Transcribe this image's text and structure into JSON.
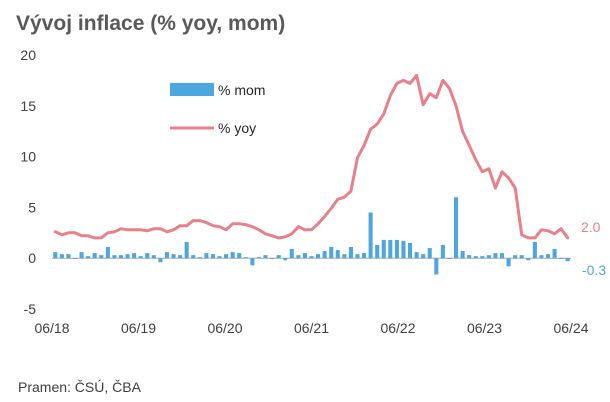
{
  "chart_data": {
    "type": "bar+line",
    "title": "Vývoj inflace (% yoy, mom)",
    "source": "Pramen: ČSÚ, ČBA",
    "ylim": [
      -5,
      20
    ],
    "y_ticks": [
      "20",
      "15",
      "10",
      "5",
      "0",
      "-5"
    ],
    "x_ticks": [
      "06/18",
      "06/19",
      "06/20",
      "06/21",
      "06/22",
      "06/23",
      "06/24"
    ],
    "grid": false,
    "legend_position": "top-left",
    "series": [
      {
        "name": "% mom",
        "kind": "bar",
        "color": "#4ea6e0",
        "values": [
          0.6,
          0.4,
          0.4,
          0.0,
          0.6,
          0.2,
          0.5,
          0.3,
          1.1,
          0.3,
          0.3,
          0.4,
          0.5,
          0.2,
          0.5,
          0.3,
          -0.4,
          0.6,
          0.4,
          0.3,
          1.6,
          0.3,
          0.1,
          0.5,
          0.4,
          0.2,
          0.4,
          0.6,
          0.5,
          0.1,
          -0.7,
          0.1,
          0.3,
          0.0,
          0.3,
          -0.2,
          0.9,
          0.3,
          0.5,
          0.2,
          0.4,
          0.7,
          1.1,
          0.8,
          0.4,
          1.1,
          0.4,
          0.5,
          4.5,
          1.3,
          1.8,
          1.8,
          1.8,
          1.7,
          1.5,
          0.6,
          0.4,
          1.0,
          -1.6,
          1.3,
          0.0,
          6.0,
          0.7,
          0.3,
          0.2,
          0.2,
          0.3,
          0.5,
          0.5,
          -0.8,
          0.3,
          0.3,
          -0.2,
          1.6,
          0.3,
          0.4,
          0.9,
          0.0,
          -0.3
        ],
        "end_label": "-0.3"
      },
      {
        "name": "% yoy",
        "kind": "line",
        "color": "#e8808a",
        "values": [
          2.6,
          2.3,
          2.5,
          2.5,
          2.2,
          2.2,
          2.0,
          2.0,
          2.5,
          2.6,
          2.9,
          2.8,
          2.8,
          2.8,
          2.7,
          2.9,
          2.9,
          2.6,
          2.8,
          3.2,
          3.2,
          3.7,
          3.7,
          3.5,
          3.2,
          3.1,
          2.8,
          3.4,
          3.4,
          3.3,
          3.1,
          2.8,
          2.4,
          2.2,
          2.0,
          2.1,
          2.4,
          3.1,
          2.8,
          2.8,
          3.4,
          4.1,
          4.9,
          5.8,
          6.0,
          6.6,
          9.9,
          11.1,
          12.7,
          13.2,
          14.2,
          16.0,
          17.2,
          17.5,
          17.2,
          18.0,
          15.1,
          16.2,
          15.8,
          17.5,
          16.7,
          15.0,
          12.5,
          11.1,
          9.7,
          8.5,
          8.8,
          6.9,
          8.5,
          7.9,
          6.9,
          2.3,
          2.0,
          2.0,
          2.8,
          2.7,
          2.4,
          2.9,
          2.0
        ],
        "end_label": "2.0"
      }
    ]
  }
}
